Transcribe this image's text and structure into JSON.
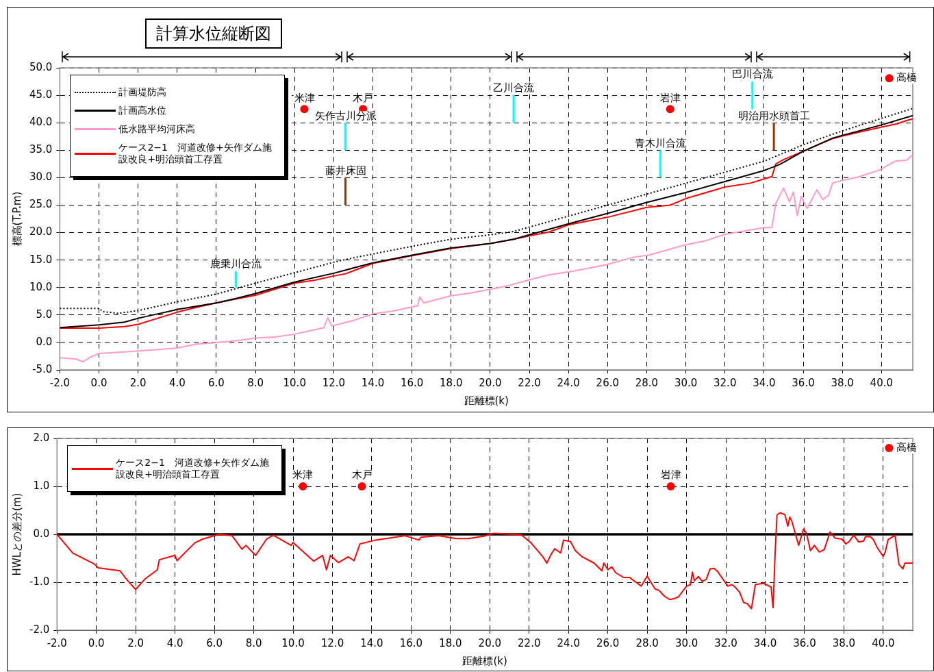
{
  "chart_data": [
    {
      "type": "line",
      "title": "計算水位縦断図",
      "xlabel": "距離標(k)",
      "ylabel": "標高(T.P.m)",
      "xlim": [
        -2,
        41.6
      ],
      "ylim": [
        -5,
        50
      ],
      "xticks": [
        {
          "value": -2,
          "label": "-2.0"
        },
        {
          "value": 0,
          "label": "0.0"
        },
        {
          "value": 2,
          "label": "2.0"
        },
        {
          "value": 4,
          "label": "4.0"
        },
        {
          "value": 6,
          "label": "6.0"
        },
        {
          "value": 8,
          "label": "8.0"
        },
        {
          "value": 10,
          "label": "10.0"
        },
        {
          "value": 12,
          "label": "12.0"
        },
        {
          "value": 14,
          "label": "14.0"
        },
        {
          "value": 16,
          "label": "16.0"
        },
        {
          "value": 18,
          "label": "18.0"
        },
        {
          "value": 20,
          "label": "20.0"
        },
        {
          "value": 22,
          "label": "22.0"
        },
        {
          "value": 24,
          "label": "24.0"
        },
        {
          "value": 26,
          "label": "26.0"
        },
        {
          "value": 28,
          "label": "28.0"
        },
        {
          "value": 30,
          "label": "30.0"
        },
        {
          "value": 32,
          "label": "32.0"
        },
        {
          "value": 34,
          "label": "34.0"
        },
        {
          "value": 36,
          "label": "36.0"
        },
        {
          "value": 38,
          "label": "38.0"
        },
        {
          "value": 40,
          "label": "40.0"
        }
      ],
      "yticks": [
        {
          "value": -5,
          "label": "-5.0"
        },
        {
          "value": 0,
          "label": "0.0"
        },
        {
          "value": 5,
          "label": "5.0"
        },
        {
          "value": 10,
          "label": "10.0"
        },
        {
          "value": 15,
          "label": "15.0"
        },
        {
          "value": 20,
          "label": "20.0"
        },
        {
          "value": 25,
          "label": "25.0"
        },
        {
          "value": 30,
          "label": "30.0"
        },
        {
          "value": 35,
          "label": "35.0"
        },
        {
          "value": 40,
          "label": "40.0"
        },
        {
          "value": 45,
          "label": "45.0"
        },
        {
          "value": 50,
          "label": "50.0"
        }
      ],
      "grid": true,
      "legend": "top left",
      "marker": "none",
      "series": [
        {
          "name": "計画堤防高",
          "color": "#000000",
          "line_style": "dotted",
          "x": [
            -2,
            0,
            0.2,
            1,
            2,
            4,
            6,
            7,
            8,
            10,
            12,
            12.6,
            14,
            16,
            18,
            20,
            21.2,
            22,
            24,
            26,
            28,
            30,
            32,
            34,
            35,
            36,
            37.5,
            38,
            40,
            41.6
          ],
          "values": [
            6.2,
            6.2,
            5.6,
            5.3,
            5.8,
            7.4,
            8.8,
            9.8,
            10.8,
            12.7,
            14.6,
            15.1,
            16.1,
            17.5,
            18.8,
            19.6,
            20.2,
            21.0,
            23.0,
            25.0,
            27.0,
            29.0,
            31.0,
            33.0,
            34.5,
            36.0,
            37.9,
            38.5,
            40.8,
            42.6
          ]
        },
        {
          "name": "計画高水位",
          "color": "#000000",
          "line_style": "solid",
          "x": [
            -2,
            0,
            1.3,
            2,
            4,
            6,
            7,
            8,
            10,
            12,
            14,
            16,
            18,
            20,
            21.2,
            22,
            24,
            26,
            28,
            30,
            32,
            34,
            34.8,
            36,
            37.5,
            38,
            40,
            41.6
          ],
          "values": [
            2.7,
            3.2,
            3.7,
            4.4,
            6.0,
            7.2,
            8.0,
            8.9,
            11.0,
            12.6,
            14.5,
            15.9,
            17.2,
            18.0,
            18.8,
            19.6,
            21.6,
            23.5,
            25.5,
            27.3,
            29.3,
            31.3,
            32.4,
            34.8,
            37.2,
            37.7,
            39.6,
            41.3
          ]
        },
        {
          "name": "低水路平均河床高",
          "color": "#ff99cc",
          "line_style": "solid",
          "x": [
            -2,
            -1.2,
            -0.8,
            -0.5,
            0,
            1,
            1.8,
            3,
            4,
            5,
            6,
            7,
            8,
            9,
            10,
            11,
            11.5,
            11.7,
            11.9,
            13,
            14,
            15,
            16.3,
            16.4,
            16.6,
            18,
            19,
            20.2,
            21,
            22,
            23,
            24.1,
            25,
            26,
            27.3,
            28.1,
            29,
            30,
            31,
            32,
            33,
            34,
            34.4,
            34.6,
            35,
            35.3,
            35.5,
            35.7,
            35.9,
            36.2,
            36.7,
            37,
            37.3,
            37.5,
            38,
            38.8,
            39.9,
            40.7,
            41.3,
            41.6
          ],
          "values": [
            -2.8,
            -3.0,
            -3.5,
            -2.8,
            -2.0,
            -1.8,
            -1.6,
            -1.3,
            -1.0,
            -0.3,
            0.0,
            0.3,
            0.8,
            1.0,
            1.5,
            2.3,
            2.7,
            4.5,
            3.0,
            4.0,
            5.2,
            5.7,
            6.7,
            8.3,
            7.2,
            8.5,
            9.0,
            9.8,
            10.4,
            11.4,
            12.3,
            12.9,
            13.5,
            14.2,
            15.5,
            15.9,
            16.8,
            17.8,
            18.5,
            19.7,
            20.3,
            20.9,
            20.9,
            25.3,
            28.1,
            25.6,
            27.4,
            23.1,
            26.6,
            24.4,
            27.8,
            26.0,
            26.8,
            29.0,
            29.5,
            30.1,
            31.4,
            33.0,
            33.2,
            34.2
          ]
        },
        {
          "name": "ケース2−1　河道改修+矢作ダム施設改良+明治頭首工存置",
          "color": "#ff0000",
          "line_style": "solid",
          "x": [
            -2,
            0,
            1.3,
            2,
            3,
            4,
            5,
            6,
            7,
            8,
            10,
            11,
            12,
            12.6,
            14,
            16,
            18,
            20,
            21.2,
            22,
            23,
            24,
            26,
            28,
            29.2,
            30,
            32,
            33.3,
            34.4,
            34.6,
            35,
            36,
            37.5,
            38,
            40,
            40.8,
            41.2,
            41.6
          ],
          "values": [
            2.6,
            2.6,
            2.9,
            3.3,
            4.4,
            5.5,
            6.4,
            7.2,
            7.9,
            8.6,
            10.8,
            11.3,
            12.1,
            12.5,
            14.4,
            15.8,
            17.1,
            18.0,
            18.8,
            19.4,
            20.1,
            21.4,
            22.8,
            24.6,
            25.0,
            26.2,
            28.3,
            29.0,
            30.2,
            32.5,
            33.3,
            34.8,
            37.1,
            37.6,
            39.2,
            39.8,
            40.3,
            40.7
          ]
        },
        {
          "type": "line",
          "color": "#00ffff",
          "x": [
            7,
            7
          ],
          "values": [
            10,
            13
          ]
        },
        {
          "type": "line",
          "color": "#00ffff",
          "x": [
            12.6,
            12.6
          ],
          "values": [
            35,
            40
          ]
        },
        {
          "type": "line",
          "color": "#00ffff",
          "x": [
            21.2,
            21.2
          ],
          "values": [
            40,
            45
          ]
        },
        {
          "type": "line",
          "color": "#00ffff",
          "x": [
            28.7,
            28.7
          ],
          "values": [
            30,
            35
          ]
        },
        {
          "type": "line",
          "color": "#00ffff",
          "x": [
            33.4,
            33.4
          ],
          "values": [
            42.5,
            47.5
          ]
        },
        {
          "type": "line",
          "color": "#993300",
          "x": [
            12.6,
            12.6
          ],
          "values": [
            25,
            30
          ]
        },
        {
          "type": "line",
          "color": "#993300",
          "x": [
            34.5,
            34.5
          ],
          "values": [
            35,
            40
          ]
        },
        {
          "type": "scatter",
          "marker": "circle",
          "color": "#ff0000",
          "x": [
            10.5,
            13.5,
            29.2,
            40.4
          ],
          "values": [
            42.5,
            42.5,
            42.5,
            48.1
          ]
        }
      ],
      "annotations": [
        {
          "text": "米津",
          "x": 10.5,
          "y": 42.5
        },
        {
          "text": "木戸",
          "x": 13.5,
          "y": 42.5
        },
        {
          "text": "岩津",
          "x": 29.2,
          "y": 42.5
        },
        {
          "text": "高橋",
          "x": 40.4,
          "y": 48.1
        },
        {
          "text": "鹿乗川合流",
          "x": 7,
          "y": 13
        },
        {
          "text": "矢作古川分派",
          "x": 12.6,
          "y": 40
        },
        {
          "text": "藤井床固",
          "x": 12.6,
          "y": 30
        },
        {
          "text": "乙川合流",
          "x": 21.2,
          "y": 45
        },
        {
          "text": "青木川合流",
          "x": 28.7,
          "y": 35
        },
        {
          "text": "巴川合流",
          "x": 33.4,
          "y": 47.5
        },
        {
          "text": "明治用水頭首工",
          "x": 34.5,
          "y": 40
        }
      ]
    },
    {
      "type": "line",
      "xlabel": "距離標(k)",
      "ylabel": "HWLとの差分(m)",
      "xlim": [
        -2,
        41.5
      ],
      "ylim": [
        -2,
        2
      ],
      "xticks": [
        {
          "value": -2,
          "label": "-2.0"
        },
        {
          "value": 0,
          "label": "0.0"
        },
        {
          "value": 2,
          "label": "2.0"
        },
        {
          "value": 4,
          "label": "4.0"
        },
        {
          "value": 6,
          "label": "6.0"
        },
        {
          "value": 8,
          "label": "8.0"
        },
        {
          "value": 10,
          "label": "10.0"
        },
        {
          "value": 12,
          "label": "12.0"
        },
        {
          "value": 14,
          "label": "14.0"
        },
        {
          "value": 16,
          "label": "16.0"
        },
        {
          "value": 18,
          "label": "18.0"
        },
        {
          "value": 20,
          "label": "20.0"
        },
        {
          "value": 22,
          "label": "22.0"
        },
        {
          "value": 24,
          "label": "24.0"
        },
        {
          "value": 26,
          "label": "26.0"
        },
        {
          "value": 28,
          "label": "28.0"
        },
        {
          "value": 30,
          "label": "30.0"
        },
        {
          "value": 32,
          "label": "32.0"
        },
        {
          "value": 34,
          "label": "34.0"
        },
        {
          "value": 36,
          "label": "36.0"
        },
        {
          "value": 38,
          "label": "38.0"
        },
        {
          "value": 40,
          "label": "40.0"
        }
      ],
      "yticks": [
        {
          "value": -2,
          "label": "-2.0"
        },
        {
          "value": -1,
          "label": "-1.0"
        },
        {
          "value": 0,
          "label": "0.0"
        },
        {
          "value": 1,
          "label": "1.0"
        },
        {
          "value": 2,
          "label": "2.0"
        }
      ],
      "grid": true,
      "legend": "top left",
      "marker": "none",
      "ref_lines": [
        {
          "axis": "y",
          "value": 0,
          "color": "#000000"
        }
      ],
      "series": [
        {
          "name": "ケース2−1　河道改修+矢作ダム施設改良+明治頭首工存置",
          "color": "#ff0000",
          "line_style": "solid",
          "x": [
            -2,
            -1.2,
            -0.1,
            0.1,
            1.2,
            1.6,
            2.0,
            2.45,
            3.1,
            3.2,
            4.0,
            4.1,
            5.0,
            5.4,
            6.25,
            6.9,
            7.4,
            7.6,
            8.1,
            8.65,
            9.0,
            9.9,
            10.0,
            11.05,
            11.5,
            11.7,
            11.9,
            12.3,
            12.8,
            13.1,
            13.4,
            14.2,
            15.7,
            16.4,
            16.5,
            17.4,
            18.3,
            18.9,
            19.7,
            20.2,
            21.6,
            22.1,
            22.7,
            22.9,
            23.1,
            23.3,
            23.6,
            23.75,
            24.1,
            24.35,
            24.7,
            25.3,
            25.7,
            25.8,
            26.0,
            26.2,
            26.4,
            26.8,
            27.1,
            27.7,
            28.0,
            28.4,
            28.6,
            28.9,
            29.15,
            29.4,
            29.6,
            30.0,
            30.2,
            30.3,
            30.4,
            30.6,
            30.8,
            31.0,
            31.2,
            31.4,
            31.55,
            32.1,
            32.3,
            32.45,
            32.7,
            32.9,
            33.1,
            33.3,
            33.5,
            33.9,
            34.3,
            34.4,
            34.5,
            34.6,
            34.75,
            35.0,
            35.15,
            35.25,
            35.35,
            35.7,
            35.95,
            36.1,
            36.3,
            36.5,
            36.75,
            37.0,
            37.3,
            37.55,
            37.9,
            38.1,
            38.25,
            38.5,
            38.75,
            39.0,
            39.1,
            39.35,
            39.5,
            39.7,
            40.0,
            40.1,
            40.25,
            40.6,
            40.8,
            41.0,
            41.1,
            41.5
          ],
          "values": [
            0,
            -0.39,
            -0.62,
            -0.7,
            -0.76,
            -0.97,
            -1.15,
            -0.94,
            -0.74,
            -0.53,
            -0.44,
            -0.55,
            -0.18,
            -0.1,
            0,
            -0.03,
            -0.31,
            -0.23,
            -0.44,
            -0.1,
            -0.02,
            -0.23,
            -0.17,
            -0.56,
            -0.44,
            -0.74,
            -0.44,
            -0.59,
            -0.47,
            -0.55,
            -0.2,
            -0.12,
            -0.03,
            -0.12,
            -0.06,
            -0.03,
            -0.09,
            -0.09,
            -0.04,
            0.02,
            -0.01,
            -0.18,
            -0.47,
            -0.6,
            -0.43,
            -0.3,
            -0.39,
            -0.12,
            -0.15,
            -0.34,
            -0.47,
            -0.6,
            -0.76,
            -0.6,
            -0.74,
            -0.68,
            -0.8,
            -0.9,
            -0.9,
            -1.08,
            -0.87,
            -1.14,
            -1.17,
            -1.3,
            -1.36,
            -1.34,
            -1.3,
            -1.08,
            -1.05,
            -0.79,
            -0.97,
            -0.88,
            -0.98,
            -0.94,
            -0.72,
            -0.71,
            -0.76,
            -1.08,
            -1.05,
            -1.09,
            -1.21,
            -1.42,
            -1.45,
            -1.55,
            -1.05,
            -1.02,
            -1.1,
            -1.53,
            -0.43,
            0.4,
            0.45,
            0.41,
            0.17,
            0.36,
            0.28,
            -0.23,
            0.11,
            0.02,
            -0.34,
            -0.23,
            -0.37,
            -0.32,
            0.05,
            -0.08,
            -0.1,
            -0.2,
            -0.16,
            -0.02,
            -0.16,
            -0.14,
            -0.05,
            -0.05,
            -0.11,
            -0.28,
            -0.46,
            -0.37,
            -0.11,
            -0.02,
            -0.63,
            -0.72,
            -0.6,
            -0.6
          ]
        },
        {
          "type": "scatter",
          "marker": "circle",
          "color": "#ff0000",
          "x": [
            10.5,
            13.5,
            29.2,
            40.3
          ],
          "values": [
            1,
            1,
            1,
            1.8
          ]
        }
      ],
      "annotations": [
        {
          "text": "米津",
          "x": 10.5,
          "y": 1
        },
        {
          "text": "木戸",
          "x": 13.5,
          "y": 1
        },
        {
          "text": "岩津",
          "x": 29.2,
          "y": 1
        },
        {
          "text": "高橋",
          "x": 40.3,
          "y": 1.8
        }
      ]
    }
  ]
}
